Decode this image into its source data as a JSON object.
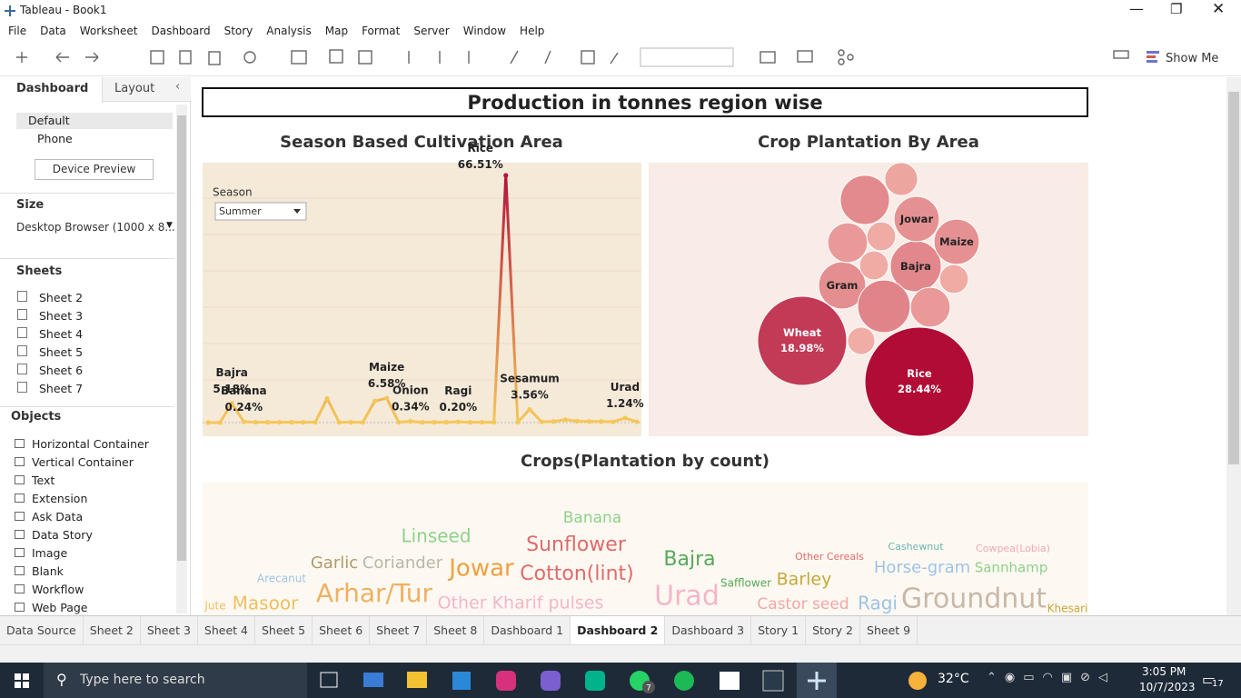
{
  "window": {
    "title": "Tableau - Book1"
  },
  "menu": [
    "File",
    "Data",
    "Worksheet",
    "Dashboard",
    "Story",
    "Analysis",
    "Map",
    "Format",
    "Server",
    "Window",
    "Help"
  ],
  "toolbar": {
    "show_me": "Show Me"
  },
  "side_panel": {
    "tabs": [
      "Dashboard",
      "Layout"
    ],
    "devices": [
      "Default",
      "Phone"
    ],
    "device_preview": "Device Preview",
    "size_heading": "Size",
    "size_value": "Desktop Browser (1000 x 8...",
    "sheets_heading": "Sheets",
    "sheets": [
      "Sheet 2",
      "Sheet 3",
      "Sheet 4",
      "Sheet 5",
      "Sheet 6",
      "Sheet 7"
    ],
    "objects_heading": "Objects",
    "objects": [
      "Horizontal Container",
      "Vertical Container",
      "Text",
      "Extension",
      "Ask Data",
      "Data Story",
      "Image",
      "Blank",
      "Workflow",
      "Web Page"
    ]
  },
  "dashboard": {
    "title": "Production in tonnes region wise",
    "season_chart": {
      "type": "line",
      "title": "Season Based Cultivation Area",
      "filter_label": "Season",
      "filter_value": "Summer",
      "categories": [
        null,
        null,
        "Bajra",
        "Banana",
        null,
        null,
        null,
        null,
        null,
        null,
        null,
        null,
        null,
        null,
        null,
        "Maize",
        null,
        "Onion",
        null,
        null,
        null,
        "Ragi",
        null,
        null,
        null,
        "Rice",
        null,
        "Sesamum",
        null,
        null,
        null,
        null,
        null,
        null,
        null,
        "Urad",
        null
      ],
      "values": [
        0,
        0,
        5.18,
        0.24,
        0.1,
        0.1,
        0.1,
        0.1,
        0.1,
        0.1,
        6.5,
        0.1,
        0.1,
        0.1,
        5.8,
        6.58,
        0.1,
        0.34,
        0.1,
        0.1,
        0.1,
        0.2,
        0.1,
        0.1,
        0.1,
        66.51,
        0.1,
        3.56,
        0.2,
        0.3,
        0.8,
        0.4,
        0.3,
        0.3,
        0.2,
        1.24,
        0.2
      ],
      "value_labels": [
        null,
        null,
        "5.18%",
        "0.24%",
        null,
        null,
        null,
        null,
        null,
        null,
        null,
        null,
        null,
        null,
        null,
        "6.58%",
        null,
        "0.34%",
        null,
        null,
        null,
        "0.20%",
        null,
        null,
        null,
        "66.51%",
        null,
        "3.56%",
        null,
        null,
        null,
        null,
        null,
        null,
        null,
        "1.24%",
        null
      ],
      "color_low": "#f5c75a",
      "color_high": "#b5133a"
    },
    "bubble_chart": {
      "type": "bubble",
      "title": "Crop Plantation By Area",
      "labels": [
        "Rice",
        "Wheat",
        "Bajra",
        "Jowar",
        "Maize",
        "Gram",
        null,
        null,
        null,
        null,
        null,
        null,
        null,
        null,
        null
      ],
      "values": [
        28.44,
        18.98,
        6.2,
        4.9,
        4.9,
        5.3,
        6.6,
        5.8,
        3.8,
        3.8,
        2.6,
        2.0,
        2.0,
        2.0,
        1.8
      ],
      "value_labels": [
        "28.44%",
        "18.98%",
        null,
        null,
        null,
        null,
        null,
        null,
        null,
        null,
        null,
        null,
        null,
        null,
        null
      ],
      "color_low": "#fbc8b8",
      "color_high": "#b10c36"
    },
    "word_cloud": {
      "type": "word-cloud",
      "title": "Crops(Plantation by count)",
      "words": [
        {
          "text": "Banana",
          "color": "#8fd18a"
        },
        {
          "text": "Linseed",
          "color": "#8fd18a"
        },
        {
          "text": "Sunflower",
          "color": "#e06a6a"
        },
        {
          "text": "Garlic",
          "color": "#b09a6a"
        },
        {
          "text": "Coriander",
          "color": "#b8b8a8"
        },
        {
          "text": "Jowar",
          "color": "#f0a040"
        },
        {
          "text": "Cotton(lint)",
          "color": "#e06a6a"
        },
        {
          "text": "Bajra",
          "color": "#58a858"
        },
        {
          "text": "Arecanut",
          "color": "#9ec3e6"
        },
        {
          "text": "Other Cereals",
          "color": "#e06a6a"
        },
        {
          "text": "Cashewnut",
          "color": "#69b8b0"
        },
        {
          "text": "Cowpea(Lobia)",
          "color": "#f4a6b6"
        },
        {
          "text": "Horse-gram",
          "color": "#9ec3e6"
        },
        {
          "text": "Sannhamp",
          "color": "#8fd18a"
        },
        {
          "text": "Safflower",
          "color": "#58a858"
        },
        {
          "text": "Barley",
          "color": "#c8a838"
        },
        {
          "text": "Jute",
          "color": "#f0c060"
        },
        {
          "text": "Masoor",
          "color": "#f0c060"
        },
        {
          "text": "Arhar/Tur",
          "color": "#f0b060"
        },
        {
          "text": "Other Kharif pulses",
          "color": "#f4b6c6"
        },
        {
          "text": "Urad",
          "color": "#f4b6c6"
        },
        {
          "text": "Castor seed",
          "color": "#f4a6a6"
        },
        {
          "text": "Ragi",
          "color": "#9ec3e6"
        },
        {
          "text": "Groundnut",
          "color": "#c8b8a8"
        },
        {
          "text": "Khesari",
          "color": "#c8a838"
        }
      ]
    }
  },
  "tabs": [
    "Data Source",
    "Sheet 2",
    "Sheet 3",
    "Sheet 4",
    "Sheet 5",
    "Sheet 6",
    "Sheet 7",
    "Sheet 8",
    "Dashboard 1",
    "Dashboard 2",
    "Dashboard 3",
    "Story 1",
    "Story 2",
    "Sheet 9"
  ],
  "active_tab": 9,
  "taskbar": {
    "search": "Type here to search",
    "whatsapp_badge": "7",
    "temperature": "32°C",
    "time": "3:05 PM",
    "date": "10/7/2023",
    "notifications": "17"
  }
}
